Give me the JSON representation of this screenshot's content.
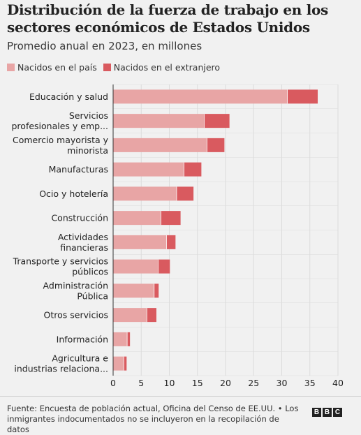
{
  "header": {
    "title": "Distribución de la fuerza de trabajo en los sectores económicos de Estados Unidos",
    "subtitle": "Promedio anual en 2023, en millones"
  },
  "legend": {
    "native": "Nacidos en el país",
    "foreign": "Nacidos en el extranjero"
  },
  "colors": {
    "native": "#e8a5a5",
    "foreign": "#d95a5f",
    "grid": "#dcdcdc"
  },
  "chart_data": {
    "type": "bar",
    "orientation": "horizontal",
    "stacked": true,
    "categories": [
      [
        "Educación y salud"
      ],
      [
        "Servicios",
        "profesionales y emp..."
      ],
      [
        "Comercio mayorista y",
        "minorista"
      ],
      [
        "Manufacturas"
      ],
      [
        "Ocio y hotelería"
      ],
      [
        "Construcción"
      ],
      [
        "Actividades",
        "financieras"
      ],
      [
        "Transporte y servicios",
        "públicos"
      ],
      [
        "Administración",
        "Pública"
      ],
      [
        "Otros servicios"
      ],
      [
        "Información"
      ],
      [
        "Agricultura e",
        "industrias relaciona..."
      ]
    ],
    "series": [
      {
        "name": "Nacidos en el país",
        "values": [
          31.0,
          16.2,
          16.7,
          12.6,
          11.3,
          8.5,
          9.5,
          8.0,
          7.3,
          6.0,
          2.5,
          1.9
        ]
      },
      {
        "name": "Nacidos en el extranjero",
        "values": [
          5.4,
          4.5,
          3.1,
          3.1,
          3.0,
          3.5,
          1.6,
          2.1,
          0.8,
          1.7,
          0.5,
          0.5
        ]
      }
    ],
    "xlim": [
      0,
      40
    ],
    "xticks": [
      0,
      5,
      10,
      15,
      20,
      25,
      30,
      35,
      40
    ],
    "grid": true,
    "legend_position": "top-left"
  },
  "footer": {
    "source": "Fuente: Encuesta de población actual, Oficina del Censo de EE.UU. • Los inmigrantes indocumentados no se incluyeron en la recopilación de datos",
    "logo": [
      "B",
      "B",
      "C"
    ]
  }
}
